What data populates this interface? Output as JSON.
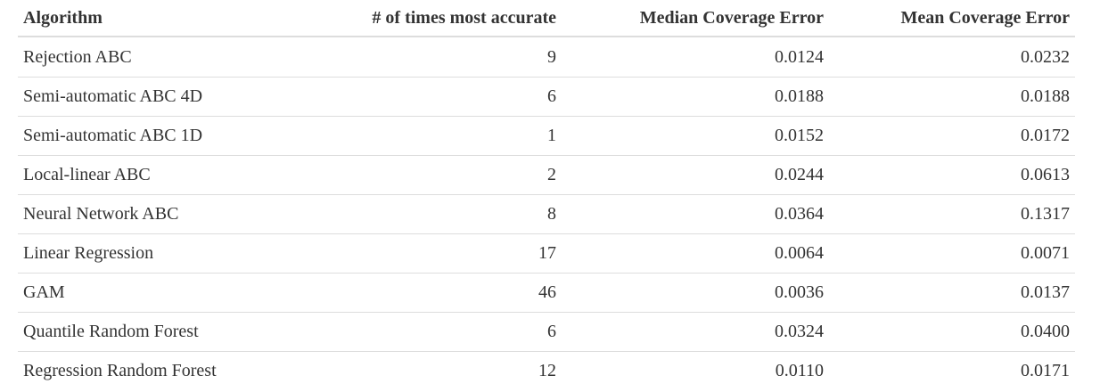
{
  "table": {
    "headers": [
      "Algorithm",
      "# of times most accurate",
      "Median Coverage Error",
      "Mean Coverage Error"
    ],
    "rows": [
      [
        "Rejection ABC",
        "9",
        "0.0124",
        "0.0232"
      ],
      [
        "Semi-automatic ABC 4D",
        "6",
        "0.0188",
        "0.0188"
      ],
      [
        "Semi-automatic ABC 1D",
        "1",
        "0.0152",
        "0.0172"
      ],
      [
        "Local-linear ABC",
        "2",
        "0.0244",
        "0.0613"
      ],
      [
        "Neural Network ABC",
        "8",
        "0.0364",
        "0.1317"
      ],
      [
        "Linear Regression",
        "17",
        "0.0064",
        "0.0071"
      ],
      [
        "GAM",
        "46",
        "0.0036",
        "0.0137"
      ],
      [
        "Quantile Random Forest",
        "6",
        "0.0324",
        "0.0400"
      ],
      [
        "Regression Random Forest",
        "12",
        "0.0110",
        "0.0171"
      ]
    ]
  }
}
